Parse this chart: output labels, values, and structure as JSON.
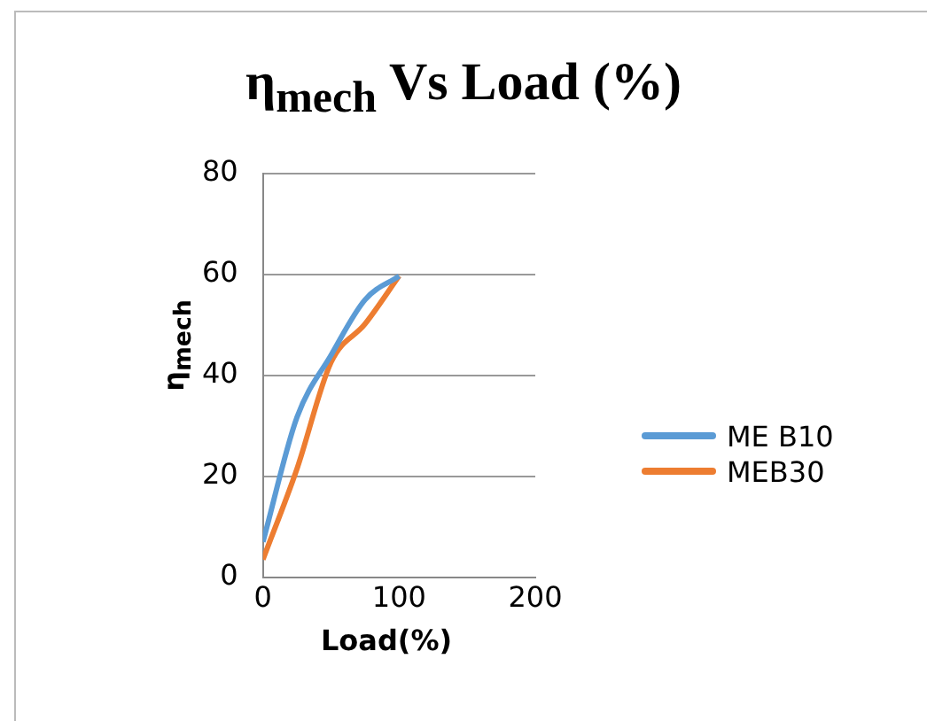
{
  "chart_data": {
    "type": "line",
    "title": "η$_{mech}$ Vs Load (%)",
    "xlabel": "Load(%)",
    "ylabel": "η$_{mech}$",
    "x": [
      0,
      25,
      50,
      75,
      100
    ],
    "series": [
      {
        "name": "ME B10",
        "color": "#5b9bd5",
        "values": [
          7,
          31.7,
          44,
          55,
          59.7
        ]
      },
      {
        "name": "MEB30",
        "color": "#ed7d31",
        "values": [
          3.5,
          21.5,
          42.6,
          50.2,
          59.7
        ]
      }
    ],
    "xlim": [
      0,
      200
    ],
    "xticks": [
      0,
      100,
      200
    ],
    "ylim": [
      0,
      80
    ],
    "yticks": [
      0,
      20,
      40,
      60,
      80
    ],
    "grid": "y",
    "legend": "right",
    "marker": "none"
  }
}
